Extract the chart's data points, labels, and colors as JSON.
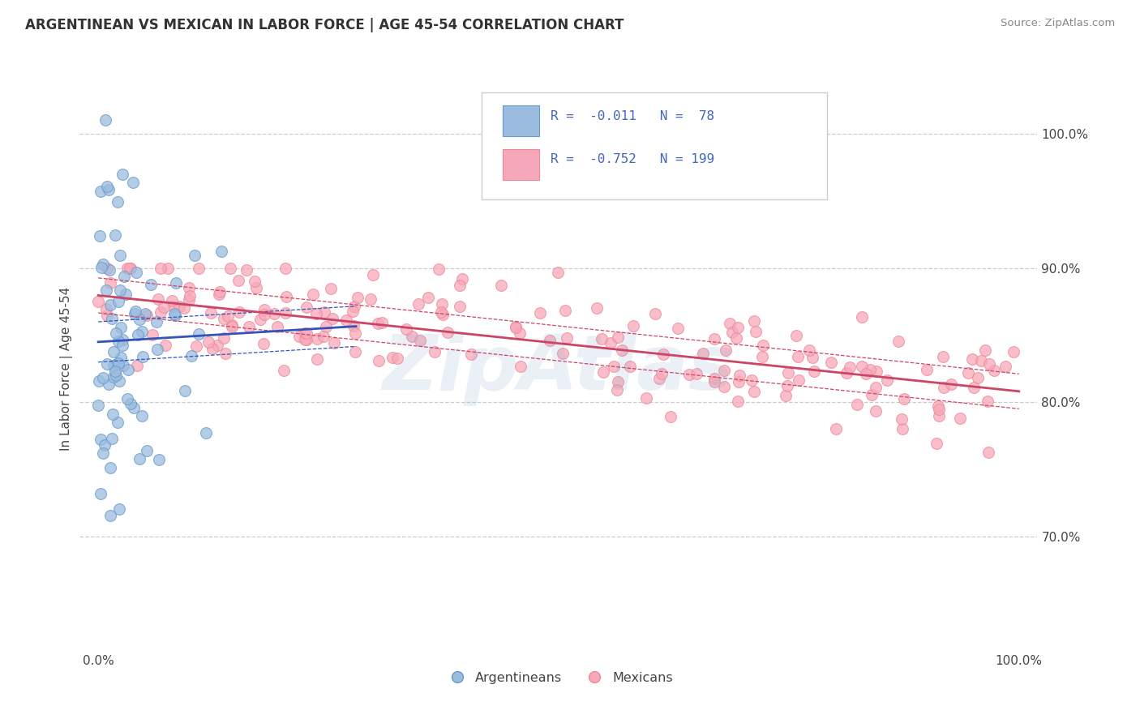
{
  "title": "ARGENTINEAN VS MEXICAN IN LABOR FORCE | AGE 45-54 CORRELATION CHART",
  "source": "Source: ZipAtlas.com",
  "ylabel": "In Labor Force | Age 45-54",
  "xlim": [
    -0.02,
    1.02
  ],
  "ylim": [
    0.615,
    1.035
  ],
  "yticks_right": [
    0.7,
    0.8,
    0.9,
    1.0
  ],
  "ytick_labels_right": [
    "70.0%",
    "80.0%",
    "90.0%",
    "100.0%"
  ],
  "argentinean_color": "#9bbcde",
  "mexican_color": "#f7a8b8",
  "argentinean_edge": "#6699cc",
  "mexican_edge": "#ee8899",
  "R_arg": -0.011,
  "N_arg": 78,
  "R_mex": -0.752,
  "N_mex": 199,
  "legend_R_color": "#4466bb",
  "background_color": "#ffffff",
  "grid_color": "#cccccc",
  "watermark": "ZipAtlas",
  "watermark_color": "#8db0cc",
  "trend_arg_color": "#3355bb",
  "trend_mex_color": "#cc4466"
}
